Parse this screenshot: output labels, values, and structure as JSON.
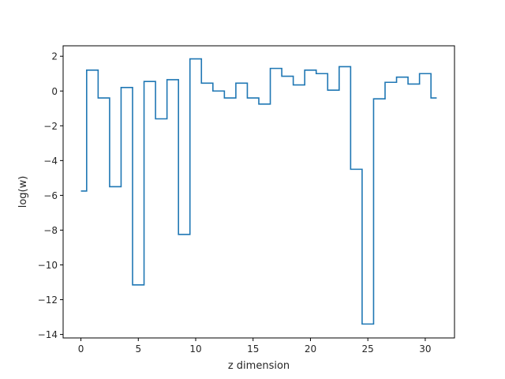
{
  "chart_data": {
    "type": "line",
    "drawstyle": "steps-mid",
    "title": "",
    "xlabel": "z dimension",
    "ylabel": "log(w)",
    "xlim": [
      -1.55,
      32.55
    ],
    "ylim": [
      -14.2,
      2.6
    ],
    "xticks": [
      0,
      5,
      10,
      15,
      20,
      25,
      30
    ],
    "yticks": [
      2,
      0,
      -2,
      -4,
      -6,
      -8,
      -10,
      -12,
      -14
    ],
    "xtick_labels": [
      "0",
      "5",
      "10",
      "15",
      "20",
      "25",
      "30"
    ],
    "ytick_labels": [
      "2",
      "0",
      "−2",
      "−4",
      "−6",
      "−8",
      "−10",
      "−12",
      "−14"
    ],
    "grid": false,
    "line_color": "#1f77b4",
    "series": [
      {
        "x": [
          0,
          1,
          2,
          3,
          4,
          5,
          6,
          7,
          8,
          9,
          10,
          11,
          12,
          13,
          14,
          15,
          16,
          17,
          18,
          19,
          20,
          21,
          22,
          23,
          24,
          25,
          26,
          27,
          28,
          29,
          30,
          31
        ],
        "values": [
          -5.75,
          1.2,
          -0.4,
          -5.5,
          0.2,
          -11.15,
          0.55,
          -1.6,
          0.65,
          -8.25,
          1.85,
          0.45,
          0.0,
          -0.4,
          0.45,
          -0.4,
          -0.75,
          1.3,
          0.85,
          0.35,
          1.2,
          1.0,
          0.05,
          1.4,
          -4.5,
          -13.4,
          -0.45,
          0.5,
          0.8,
          0.4,
          1.0,
          -0.4
        ]
      }
    ]
  }
}
